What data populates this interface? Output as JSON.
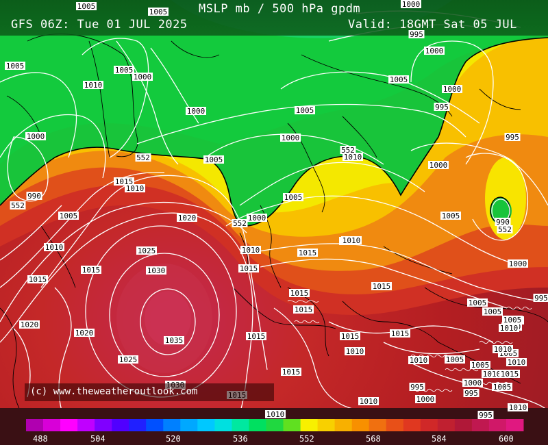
{
  "header": {
    "title": "MSLP mb / 500 hPa gpdm",
    "run": "GFS 06Z: Tue 01 JUL 2025",
    "valid": "Valid: 18GMT Sat 05 JUL"
  },
  "credit": "(c) www.theweatheroutlook.com",
  "colors": {
    "green": "#18c43a",
    "yellow": "#f4e800",
    "orange": "#f08a10",
    "red_orange": "#e0501a",
    "red": "#c42828",
    "dark_red": "#a01c24",
    "crimson": "#d0304a",
    "isobar": "#ffffff",
    "coast": "#000000"
  },
  "isobar_labels": [
    {
      "text": "1005"
    },
    {
      "text": "1005"
    },
    {
      "text": "1000"
    },
    {
      "text": "1005"
    },
    {
      "text": "1010"
    },
    {
      "text": "1005"
    },
    {
      "text": "1000"
    },
    {
      "text": "1000"
    },
    {
      "text": "995"
    },
    {
      "text": "1000"
    },
    {
      "text": "552"
    },
    {
      "text": "990"
    },
    {
      "text": "552"
    },
    {
      "text": "1015"
    },
    {
      "text": "1010"
    },
    {
      "text": "1005"
    },
    {
      "text": "1010"
    },
    {
      "text": "1015"
    },
    {
      "text": "1015"
    },
    {
      "text": "1020"
    },
    {
      "text": "1025"
    },
    {
      "text": "1030"
    },
    {
      "text": "1035"
    },
    {
      "text": "1025"
    },
    {
      "text": "1020"
    },
    {
      "text": "1020"
    },
    {
      "text": "1030"
    },
    {
      "text": "1005"
    },
    {
      "text": "1005"
    },
    {
      "text": "1000"
    },
    {
      "text": "1005"
    },
    {
      "text": "1000"
    },
    {
      "text": "552"
    },
    {
      "text": "1010"
    },
    {
      "text": "995"
    },
    {
      "text": "1000"
    },
    {
      "text": "995"
    },
    {
      "text": "1000"
    },
    {
      "text": "995"
    },
    {
      "text": "1000"
    },
    {
      "text": "1005"
    },
    {
      "text": "1000"
    },
    {
      "text": "990"
    },
    {
      "text": "552"
    },
    {
      "text": "1000"
    },
    {
      "text": "1005"
    },
    {
      "text": "1020"
    },
    {
      "text": "552"
    },
    {
      "text": "1000"
    },
    {
      "text": "1010"
    },
    {
      "text": "1015"
    },
    {
      "text": "1015"
    },
    {
      "text": "1010"
    },
    {
      "text": "1015"
    },
    {
      "text": "1015"
    },
    {
      "text": "1015"
    },
    {
      "text": "1015"
    },
    {
      "text": "1015"
    },
    {
      "text": "1010"
    },
    {
      "text": "1015"
    },
    {
      "text": "1015"
    },
    {
      "text": "1015"
    },
    {
      "text": "1005"
    },
    {
      "text": "1010"
    },
    {
      "text": "1000"
    },
    {
      "text": "1005"
    },
    {
      "text": "1005"
    },
    {
      "text": "1005"
    },
    {
      "text": "1010"
    },
    {
      "text": "1005"
    },
    {
      "text": "1010"
    },
    {
      "text": "1005"
    },
    {
      "text": "1000"
    },
    {
      "text": "995"
    },
    {
      "text": "995"
    },
    {
      "text": "1000"
    },
    {
      "text": "1010"
    },
    {
      "text": "1010"
    },
    {
      "text": "1005"
    },
    {
      "text": "1010"
    },
    {
      "text": "1015"
    },
    {
      "text": "1010"
    },
    {
      "text": "1010"
    },
    {
      "text": "995"
    },
    {
      "text": "995"
    },
    {
      "text": "1005"
    },
    {
      "text": "1010"
    }
  ],
  "scale": {
    "labels": [
      "488",
      "504",
      "520",
      "536",
      "552",
      "568",
      "584",
      "600"
    ],
    "colors": [
      "#b000b0",
      "#d800d8",
      "#ff00ff",
      "#c000ff",
      "#8000ff",
      "#5000ff",
      "#2020ff",
      "#0050ff",
      "#0080ff",
      "#00a8ff",
      "#00c8ff",
      "#00e0e0",
      "#00e8a0",
      "#00e060",
      "#20d840",
      "#60e020",
      "#f8f000",
      "#f8d000",
      "#f8b000",
      "#f89000",
      "#f07010",
      "#e85018",
      "#e03820",
      "#d02828",
      "#c02030",
      "#b01838",
      "#c01850",
      "#d01868",
      "#e01880"
    ]
  }
}
